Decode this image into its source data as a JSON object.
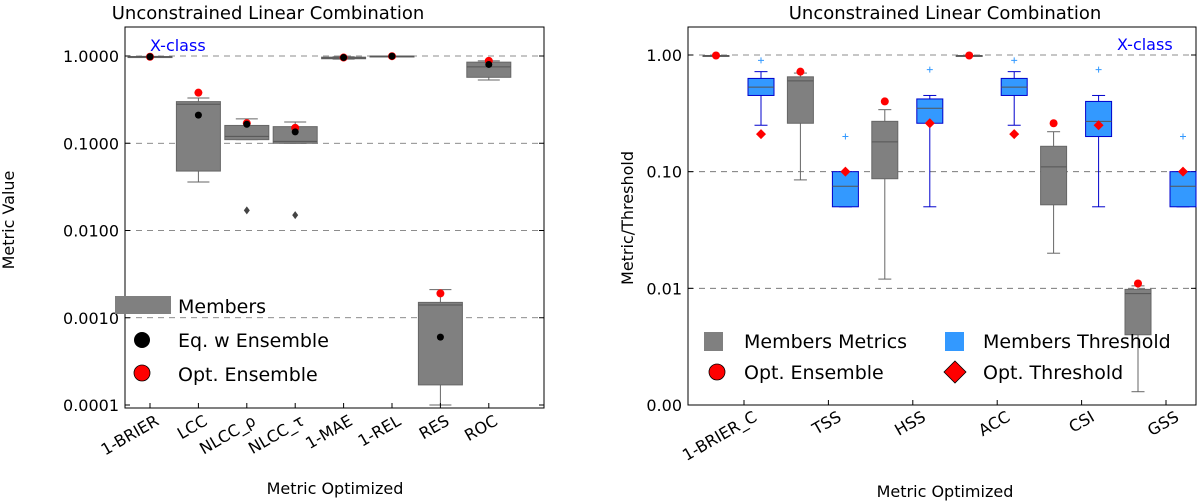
{
  "colors": {
    "gray": "#808080",
    "blue": "#3399ff",
    "red": "#ff0000",
    "black": "#000000",
    "label_blue": "#0000ff"
  },
  "chart_data": [
    {
      "type": "box",
      "title": "Unconstrained Linear Combination",
      "xlabel": "Metric Optimized",
      "ylabel": "Metric Value",
      "yscale": "log",
      "ylim": [
        0.0001,
        2.0
      ],
      "yticks": [
        0.0001,
        0.001,
        0.01,
        0.1,
        1.0
      ],
      "ytick_labels": [
        "0.0001",
        "0.0010",
        "0.0100",
        "0.1000",
        "1.0000"
      ],
      "grid_dashed_at": [
        0.001,
        0.01,
        0.1,
        1.0
      ],
      "corner_label": "X-class",
      "categories": [
        "1-BRIER",
        "LCC",
        "NLCC_ρ",
        "NLCC_τ",
        "1-MAE",
        "1-REL",
        "RES",
        "ROC"
      ],
      "boxes": [
        {
          "q1": 0.975,
          "median": 0.98,
          "q3": 0.985,
          "whislo": 0.97,
          "whishi": 0.99,
          "fliers": []
        },
        {
          "q1": 0.048,
          "median": 0.28,
          "q3": 0.3,
          "whislo": 0.036,
          "whishi": 0.33,
          "fliers": []
        },
        {
          "q1": 0.11,
          "median": 0.12,
          "q3": 0.16,
          "whislo": 0.11,
          "whishi": 0.19,
          "fliers": [
            0.017
          ]
        },
        {
          "q1": 0.1,
          "median": 0.105,
          "q3": 0.155,
          "whislo": 0.1,
          "whishi": 0.175,
          "fliers": [
            0.015
          ]
        },
        {
          "q1": 0.93,
          "median": 0.95,
          "q3": 0.97,
          "whislo": 0.92,
          "whishi": 0.98,
          "fliers": []
        },
        {
          "q1": 0.99,
          "median": 0.995,
          "q3": 1.0,
          "whislo": 0.985,
          "whishi": 1.0,
          "fliers": []
        },
        {
          "q1": 0.00017,
          "median": 0.0014,
          "q3": 0.0015,
          "whislo": 0.0001,
          "whishi": 0.0021,
          "fliers": []
        },
        {
          "q1": 0.57,
          "median": 0.75,
          "q3": 0.85,
          "whislo": 0.53,
          "whishi": 0.88,
          "fliers": []
        }
      ],
      "eq_w_ensemble": [
        0.98,
        0.21,
        0.165,
        0.135,
        0.96,
        0.995,
        0.0006,
        0.8
      ],
      "opt_ensemble": [
        0.98,
        0.38,
        0.17,
        0.15,
        0.96,
        0.995,
        0.0019,
        0.88
      ],
      "legend": [
        {
          "label": "Members",
          "marker": "box"
        },
        {
          "label": "Eq. w Ensemble",
          "marker": "black-circle"
        },
        {
          "label": "Opt. Ensemble",
          "marker": "red-circle"
        }
      ]
    },
    {
      "type": "box",
      "title": "Unconstrained Linear Combination",
      "xlabel": "Metric Optimized",
      "ylabel": "Metric/Threshold",
      "yscale": "log",
      "ylim": [
        0.001,
        1.6
      ],
      "yticks": [
        0.001,
        0.01,
        0.1,
        1.0
      ],
      "ytick_labels": [
        "0.00",
        "0.01",
        "0.10",
        "1.00"
      ],
      "grid_dashed_at": [
        0.01,
        0.1,
        1.0
      ],
      "corner_label": "X-class",
      "categories": [
        "1-BRIER_C",
        "TSS",
        "HSS",
        "ACC",
        "CSI",
        "GSS"
      ],
      "metric_boxes": [
        {
          "q1": 0.98,
          "median": 0.985,
          "q3": 0.99,
          "whislo": 0.975,
          "whishi": 0.99,
          "fliers": []
        },
        {
          "q1": 0.26,
          "median": 0.6,
          "q3": 0.65,
          "whislo": 0.085,
          "whishi": 0.7,
          "fliers": []
        },
        {
          "q1": 0.087,
          "median": 0.18,
          "q3": 0.27,
          "whislo": 0.012,
          "whishi": 0.34,
          "fliers": []
        },
        {
          "q1": 0.98,
          "median": 0.985,
          "q3": 0.99,
          "whislo": 0.975,
          "whishi": 0.99,
          "fliers": []
        },
        {
          "q1": 0.052,
          "median": 0.11,
          "q3": 0.165,
          "whislo": 0.02,
          "whishi": 0.22,
          "fliers": []
        },
        {
          "q1": 0.004,
          "median": 0.009,
          "q3": 0.0098,
          "whislo": 0.0013,
          "whishi": 0.0105,
          "fliers": []
        }
      ],
      "threshold_boxes": [
        {
          "q1": 0.45,
          "median": 0.53,
          "q3": 0.63,
          "whislo": 0.25,
          "whishi": 0.72,
          "fliers": [
            0.9
          ]
        },
        {
          "q1": 0.05,
          "median": 0.075,
          "q3": 0.1,
          "whislo": 0.05,
          "whishi": 0.1,
          "fliers": [
            0.2
          ]
        },
        {
          "q1": 0.26,
          "median": 0.35,
          "q3": 0.42,
          "whislo": 0.05,
          "whishi": 0.45,
          "fliers": [
            0.75
          ]
        },
        {
          "q1": 0.45,
          "median": 0.53,
          "q3": 0.63,
          "whislo": 0.25,
          "whishi": 0.72,
          "fliers": [
            0.9
          ]
        },
        {
          "q1": 0.2,
          "median": 0.27,
          "q3": 0.4,
          "whislo": 0.05,
          "whishi": 0.45,
          "fliers": [
            0.75
          ]
        },
        {
          "q1": 0.05,
          "median": 0.075,
          "q3": 0.1,
          "whislo": 0.05,
          "whishi": 0.1,
          "fliers": [
            0.2
          ]
        }
      ],
      "opt_ensemble": [
        0.99,
        0.72,
        0.4,
        0.99,
        0.26,
        0.011
      ],
      "opt_threshold": [
        0.21,
        0.1,
        0.26,
        0.21,
        0.25,
        0.1
      ],
      "legend": [
        {
          "label": "Members Metrics",
          "marker": "gray-square"
        },
        {
          "label": "Members Threshold",
          "marker": "blue-square"
        },
        {
          "label": "Opt. Ensemble",
          "marker": "red-circle"
        },
        {
          "label": "Opt. Threshold",
          "marker": "red-diamond"
        }
      ]
    }
  ]
}
